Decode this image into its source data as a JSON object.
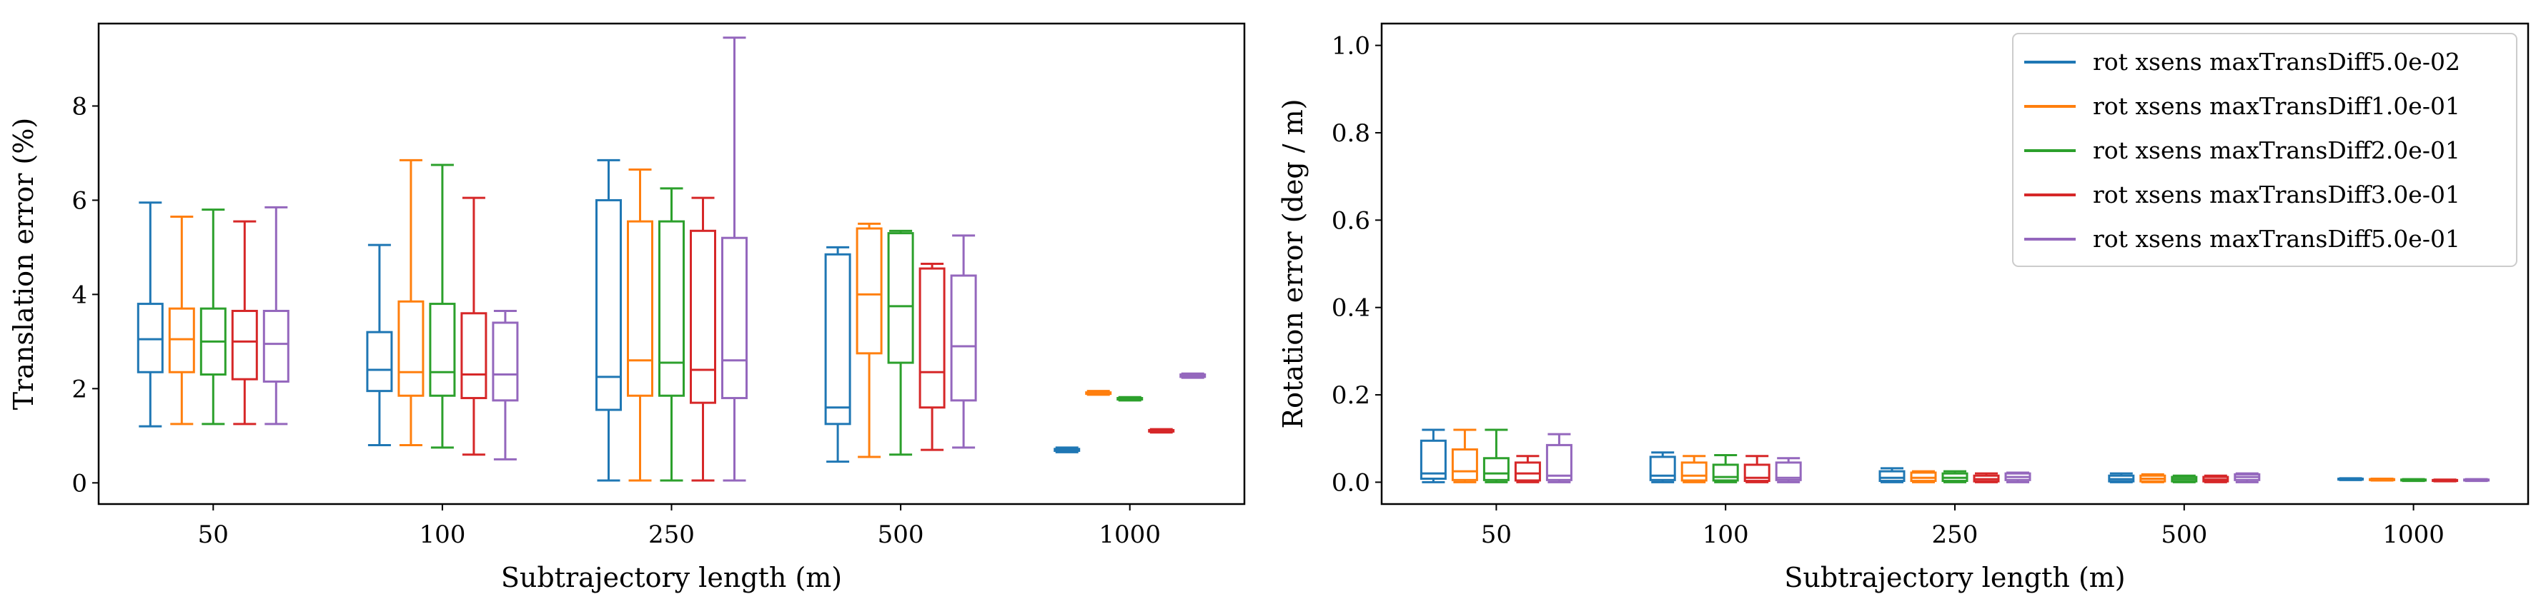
{
  "chart_data": [
    {
      "type": "box",
      "xlabel": "Subtrajectory length (m)",
      "ylabel": "Translation error (%)",
      "ylim": [
        -0.45,
        9.75
      ],
      "yticks": [
        0,
        2,
        4,
        6,
        8
      ],
      "categories": [
        "50",
        "100",
        "250",
        "500",
        "1000"
      ],
      "grid": false,
      "legend": null,
      "series": [
        {
          "name": "rot xsens maxTransDiff5.0e-02",
          "color": "#1f77b4",
          "boxes": [
            {
              "whislo": 1.2,
              "q1": 2.35,
              "med": 3.05,
              "q3": 3.8,
              "whishi": 5.95
            },
            {
              "whislo": 0.8,
              "q1": 1.95,
              "med": 2.4,
              "q3": 3.2,
              "whishi": 5.05
            },
            {
              "whislo": 0.05,
              "q1": 1.55,
              "med": 2.25,
              "q3": 6.0,
              "whishi": 6.85
            },
            {
              "whislo": 0.45,
              "q1": 1.25,
              "med": 1.6,
              "q3": 4.85,
              "whishi": 5.0
            },
            {
              "whislo": 0.65,
              "q1": 0.68,
              "med": 0.7,
              "q3": 0.72,
              "whishi": 0.75
            }
          ]
        },
        {
          "name": "rot xsens maxTransDiff1.0e-01",
          "color": "#ff7f0e",
          "boxes": [
            {
              "whislo": 1.25,
              "q1": 2.35,
              "med": 3.05,
              "q3": 3.7,
              "whishi": 5.65
            },
            {
              "whislo": 0.8,
              "q1": 1.85,
              "med": 2.35,
              "q3": 3.85,
              "whishi": 6.85
            },
            {
              "whislo": 0.05,
              "q1": 1.85,
              "med": 2.6,
              "q3": 5.55,
              "whishi": 6.65
            },
            {
              "whislo": 0.55,
              "q1": 2.75,
              "med": 4.0,
              "q3": 5.4,
              "whishi": 5.5
            },
            {
              "whislo": 1.87,
              "q1": 1.89,
              "med": 1.9,
              "q3": 1.92,
              "whishi": 1.95
            }
          ]
        },
        {
          "name": "rot xsens maxTransDiff2.0e-01",
          "color": "#2ca02c",
          "boxes": [
            {
              "whislo": 1.25,
              "q1": 2.3,
              "med": 3.0,
              "q3": 3.7,
              "whishi": 5.8
            },
            {
              "whislo": 0.75,
              "q1": 1.85,
              "med": 2.35,
              "q3": 3.8,
              "whishi": 6.75
            },
            {
              "whislo": 0.05,
              "q1": 1.85,
              "med": 2.55,
              "q3": 5.55,
              "whishi": 6.25
            },
            {
              "whislo": 0.6,
              "q1": 2.55,
              "med": 3.75,
              "q3": 5.3,
              "whishi": 5.35
            },
            {
              "whislo": 1.75,
              "q1": 1.77,
              "med": 1.78,
              "q3": 1.8,
              "whishi": 1.82
            }
          ]
        },
        {
          "name": "rot xsens maxTransDiff3.0e-01",
          "color": "#d62728",
          "boxes": [
            {
              "whislo": 1.25,
              "q1": 2.2,
              "med": 3.0,
              "q3": 3.65,
              "whishi": 5.55
            },
            {
              "whislo": 0.6,
              "q1": 1.8,
              "med": 2.3,
              "q3": 3.6,
              "whishi": 6.05
            },
            {
              "whislo": 0.05,
              "q1": 1.7,
              "med": 2.4,
              "q3": 5.35,
              "whishi": 6.05
            },
            {
              "whislo": 0.7,
              "q1": 1.6,
              "med": 2.35,
              "q3": 4.55,
              "whishi": 4.65
            },
            {
              "whislo": 1.07,
              "q1": 1.09,
              "med": 1.1,
              "q3": 1.12,
              "whishi": 1.14
            }
          ]
        },
        {
          "name": "rot xsens maxTransDiff5.0e-01",
          "color": "#9467bd",
          "boxes": [
            {
              "whislo": 1.25,
              "q1": 2.15,
              "med": 2.95,
              "q3": 3.65,
              "whishi": 5.85
            },
            {
              "whislo": 0.5,
              "q1": 1.75,
              "med": 2.3,
              "q3": 3.4,
              "whishi": 3.65
            },
            {
              "whislo": 0.05,
              "q1": 1.8,
              "med": 2.6,
              "q3": 5.2,
              "whishi": 9.45
            },
            {
              "whislo": 0.75,
              "q1": 1.75,
              "med": 2.9,
              "q3": 4.4,
              "whishi": 5.25
            },
            {
              "whislo": 2.23,
              "q1": 2.25,
              "med": 2.27,
              "q3": 2.3,
              "whishi": 2.32
            }
          ]
        }
      ]
    },
    {
      "type": "box",
      "xlabel": "Subtrajectory length (m)",
      "ylabel": "Rotation error (deg / m)",
      "ylim": [
        -0.05,
        1.05
      ],
      "yticks": [
        "0.0",
        "0.2",
        "0.4",
        "0.6",
        "0.8",
        "1.0"
      ],
      "categories": [
        "50",
        "100",
        "250",
        "500",
        "1000"
      ],
      "grid": false,
      "legend": "top-right",
      "series": [
        {
          "name": "rot xsens maxTransDiff5.0e-02",
          "color": "#1f77b4",
          "boxes": [
            {
              "whislo": 0.0,
              "q1": 0.008,
              "med": 0.02,
              "q3": 0.095,
              "whishi": 0.12
            },
            {
              "whislo": 0.0,
              "q1": 0.005,
              "med": 0.015,
              "q3": 0.058,
              "whishi": 0.068
            },
            {
              "whislo": 0.0,
              "q1": 0.003,
              "med": 0.01,
              "q3": 0.025,
              "whishi": 0.032
            },
            {
              "whislo": 0.0,
              "q1": 0.002,
              "med": 0.007,
              "q3": 0.015,
              "whishi": 0.02
            },
            {
              "whislo": 0.005,
              "q1": 0.006,
              "med": 0.007,
              "q3": 0.008,
              "whishi": 0.009
            }
          ]
        },
        {
          "name": "rot xsens maxTransDiff1.0e-01",
          "color": "#ff7f0e",
          "boxes": [
            {
              "whislo": 0.0,
              "q1": 0.005,
              "med": 0.025,
              "q3": 0.075,
              "whishi": 0.12
            },
            {
              "whislo": 0.0,
              "q1": 0.004,
              "med": 0.015,
              "q3": 0.045,
              "whishi": 0.06
            },
            {
              "whislo": 0.0,
              "q1": 0.003,
              "med": 0.01,
              "q3": 0.022,
              "whishi": 0.025
            },
            {
              "whislo": 0.0,
              "q1": 0.002,
              "med": 0.008,
              "q3": 0.015,
              "whishi": 0.018
            },
            {
              "whislo": 0.004,
              "q1": 0.005,
              "med": 0.006,
              "q3": 0.007,
              "whishi": 0.008
            }
          ]
        },
        {
          "name": "rot xsens maxTransDiff2.0e-01",
          "color": "#2ca02c",
          "boxes": [
            {
              "whislo": 0.0,
              "q1": 0.005,
              "med": 0.02,
              "q3": 0.055,
              "whishi": 0.12
            },
            {
              "whislo": 0.0,
              "q1": 0.004,
              "med": 0.012,
              "q3": 0.04,
              "whishi": 0.062
            },
            {
              "whislo": 0.0,
              "q1": 0.003,
              "med": 0.01,
              "q3": 0.02,
              "whishi": 0.025
            },
            {
              "whislo": 0.0,
              "q1": 0.002,
              "med": 0.007,
              "q3": 0.012,
              "whishi": 0.015
            },
            {
              "whislo": 0.003,
              "q1": 0.004,
              "med": 0.005,
              "q3": 0.006,
              "whishi": 0.007
            }
          ]
        },
        {
          "name": "rot xsens maxTransDiff3.0e-01",
          "color": "#d62728",
          "boxes": [
            {
              "whislo": 0.0,
              "q1": 0.004,
              "med": 0.02,
              "q3": 0.045,
              "whishi": 0.06
            },
            {
              "whislo": 0.0,
              "q1": 0.003,
              "med": 0.01,
              "q3": 0.04,
              "whishi": 0.06
            },
            {
              "whislo": 0.0,
              "q1": 0.002,
              "med": 0.007,
              "q3": 0.015,
              "whishi": 0.02
            },
            {
              "whislo": 0.0,
              "q1": 0.002,
              "med": 0.006,
              "q3": 0.012,
              "whishi": 0.015
            },
            {
              "whislo": 0.002,
              "q1": 0.003,
              "med": 0.004,
              "q3": 0.005,
              "whishi": 0.006
            }
          ]
        },
        {
          "name": "rot xsens maxTransDiff5.0e-01",
          "color": "#9467bd",
          "boxes": [
            {
              "whislo": 0.0,
              "q1": 0.005,
              "med": 0.015,
              "q3": 0.085,
              "whishi": 0.11
            },
            {
              "whislo": 0.0,
              "q1": 0.005,
              "med": 0.01,
              "q3": 0.045,
              "whishi": 0.055
            },
            {
              "whislo": 0.0,
              "q1": 0.005,
              "med": 0.012,
              "q3": 0.02,
              "whishi": 0.022
            },
            {
              "whislo": 0.0,
              "q1": 0.005,
              "med": 0.012,
              "q3": 0.018,
              "whishi": 0.02
            },
            {
              "whislo": 0.003,
              "q1": 0.004,
              "med": 0.005,
              "q3": 0.006,
              "whishi": 0.007
            }
          ]
        }
      ]
    }
  ]
}
